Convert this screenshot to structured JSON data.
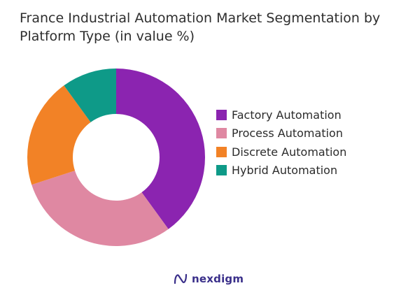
{
  "chart_data": {
    "type": "pie",
    "donut": true,
    "title": "France Industrial Automation Market Segmentation by Platform Type (in value %)",
    "categories": [
      "Factory Automation",
      "Process Automation",
      "Discrete Automation",
      "Hybrid Automation"
    ],
    "values": [
      40,
      30,
      20,
      10
    ],
    "colors": [
      "#8b24b0",
      "#df88a2",
      "#f28226",
      "#0e9a88"
    ],
    "legend_position": "right"
  },
  "brand": {
    "logo_text": "nexdigm",
    "logo_icon": "nexdigm-logo-icon"
  }
}
